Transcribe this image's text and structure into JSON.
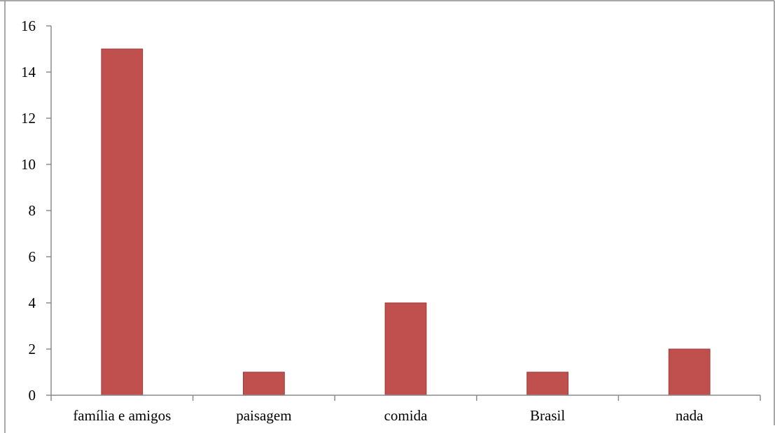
{
  "chart_data": {
    "type": "bar",
    "title": "",
    "xlabel": "",
    "ylabel": "",
    "categories": [
      "família e amigos",
      "paisagem",
      "comida",
      "Brasil",
      "nada"
    ],
    "values": [
      15,
      1,
      4,
      1,
      2
    ],
    "ylim": [
      0,
      16
    ],
    "yticks": [
      0,
      2,
      4,
      6,
      8,
      10,
      12,
      14,
      16
    ],
    "ytick_labels": [
      "0",
      "2",
      "4",
      "6",
      "8",
      "10",
      "12",
      "14",
      "16"
    ],
    "grid": false,
    "legend": "none",
    "bar_color": "#c0504d",
    "bar_edge_color": "#9c3a37"
  }
}
